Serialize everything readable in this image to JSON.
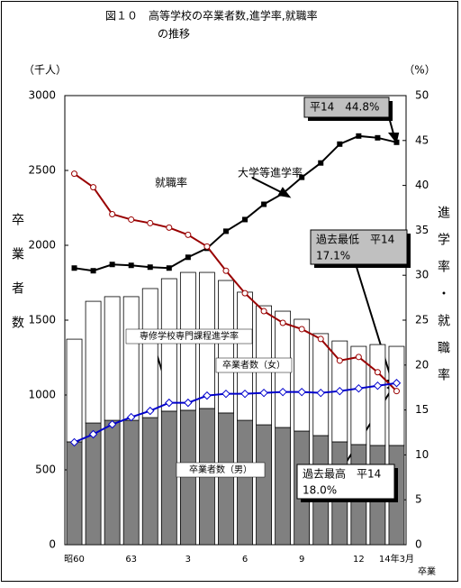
{
  "chart_data": {
    "type": "bar_line",
    "title_lines": [
      "図１０　高等学校の卒業者数,進学率,就職率",
      "の推移"
    ],
    "y_unit": "（千人）",
    "y_label": "卒業者数",
    "y2_unit": "（%）",
    "y2_label": "進学率・就職率",
    "x_label": "卒業",
    "categories": [
      "昭60",
      null,
      null,
      "63",
      null,
      null,
      "3",
      null,
      null,
      "6",
      null,
      null,
      "9",
      null,
      null,
      "12",
      null,
      "14年3月"
    ],
    "ylim": [
      0,
      3000
    ],
    "yticks": [
      0,
      500,
      1000,
      1500,
      2000,
      2500,
      3000
    ],
    "y2lim": [
      0,
      50
    ],
    "y2ticks": [
      0,
      5,
      10,
      15,
      20,
      25,
      30,
      35,
      40,
      45,
      50
    ],
    "series": [
      {
        "name": "卒業者数（男）",
        "kind": "bar",
        "color": "#808080",
        "values": [
          687,
          813,
          831,
          831,
          849,
          892,
          898,
          910,
          880,
          831,
          801,
          783,
          759,
          729,
          687,
          669,
          663,
          663
        ]
      },
      {
        "name": "卒業者数（女）",
        "kind": "bar",
        "color": "#ffffff",
        "values": [
          686,
          813,
          826,
          826,
          862,
          885,
          921,
          909,
          885,
          856,
          795,
          777,
          747,
          681,
          674,
          656,
          674,
          662
        ]
      },
      {
        "name": "大学等進学率",
        "kind": "line",
        "axis": "y2",
        "color": "#000000",
        "marker": "square",
        "values": [
          30.8,
          30.5,
          31.2,
          31.1,
          30.9,
          30.8,
          32.0,
          33.0,
          34.9,
          36.2,
          37.9,
          39.1,
          40.9,
          42.5,
          44.6,
          45.5,
          45.3,
          44.8
        ]
      },
      {
        "name": "就職率",
        "kind": "line",
        "axis": "y2",
        "color": "#990000",
        "marker": "circle",
        "values": [
          41.3,
          39.8,
          36.8,
          36.2,
          35.8,
          35.3,
          34.5,
          33.2,
          30.5,
          28.0,
          26.0,
          24.7,
          24.0,
          22.9,
          20.5,
          20.9,
          19.2,
          17.1
        ]
      },
      {
        "name": "専修学校専門課程進学率",
        "kind": "line",
        "axis": "y2",
        "color": "#0000cc",
        "marker": "diamond",
        "values": [
          11.4,
          12.3,
          13.4,
          14.2,
          14.9,
          15.8,
          15.8,
          16.6,
          16.8,
          16.8,
          16.9,
          17.0,
          17.0,
          16.9,
          17.1,
          17.4,
          17.7,
          18.0
        ]
      }
    ],
    "annotations": [
      {
        "lines": [
          "平14　44.8%"
        ]
      },
      {
        "lines": [
          "過去最低　平14",
          "17.1%"
        ]
      },
      {
        "lines": [
          "過去最高　平14",
          "18.0%"
        ]
      }
    ]
  }
}
